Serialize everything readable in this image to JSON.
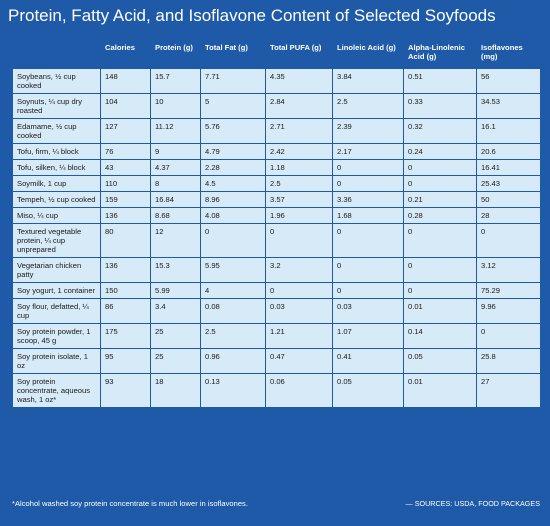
{
  "header": {
    "title": "Protein, Fatty Acid, and Isoflavone Content of Selected Soyfoods"
  },
  "table": {
    "columns": [
      "",
      "Calories",
      "Protein (g)",
      "Total Fat (g)",
      "Total PUFA (g)",
      "Linoleic Acid (g)",
      "Alpha-Linolenic Acid (g)",
      "Isoflavones (mg)"
    ],
    "rows": [
      [
        "Soybeans, ½ cup cooked",
        148,
        15.7,
        7.71,
        4.35,
        3.84,
        0.51,
        56
      ],
      [
        "Soynuts, ¼ cup dry roasted",
        104,
        10,
        5,
        2.84,
        2.5,
        0.33,
        34.53
      ],
      [
        "Edamame, ½ cup cooked",
        127,
        11.12,
        5.76,
        2.71,
        2.39,
        0.32,
        16.1
      ],
      [
        "Tofu, firm, ¼ block",
        76,
        9,
        4.79,
        2.42,
        2.17,
        0.24,
        20.6
      ],
      [
        "Tofu, silken, ¼ block",
        43,
        4.37,
        2.28,
        1.18,
        0,
        0,
        16.41
      ],
      [
        "Soymilk, 1 cup",
        110,
        8,
        4.5,
        2.5,
        0,
        0,
        25.43
      ],
      [
        "Tempeh, ½ cup cooked",
        159,
        16.84,
        8.96,
        3.57,
        3.36,
        0.21,
        50
      ],
      [
        "Miso, ¼ cup",
        136,
        8.68,
        4.08,
        1.96,
        1.68,
        0.28,
        28
      ],
      [
        "Textured vegetable protein, ¼ cup unprepared",
        80,
        12,
        0,
        0,
        0,
        0,
        0
      ],
      [
        "Vegetarian chicken patty",
        136,
        15.3,
        5.95,
        3.2,
        0,
        0,
        3.12
      ],
      [
        "Soy yogurt, 1 container",
        150,
        5.99,
        4,
        0,
        0,
        0,
        75.29
      ],
      [
        "Soy flour, defatted, ¼ cup",
        86,
        3.4,
        0.08,
        0.03,
        0.03,
        0.01,
        9.96
      ],
      [
        "Soy protein powder, 1 scoop, 45 g",
        175,
        25,
        2.5,
        1.21,
        1.07,
        0.14,
        0
      ],
      [
        "Soy protein isolate, 1 oz",
        95,
        25,
        0.96,
        0.47,
        0.41,
        0.05,
        25.8
      ],
      [
        "Soy protein concentrate, aqueous wash, 1 oz*",
        93,
        18,
        0.13,
        0.06,
        0.05,
        0.01,
        27
      ]
    ]
  },
  "footer": {
    "note": "*Alcohol washed soy protein concentrate is much lower in isoflavones.",
    "source": "— SOURCES: USDA, FOOD PACKAGES"
  }
}
